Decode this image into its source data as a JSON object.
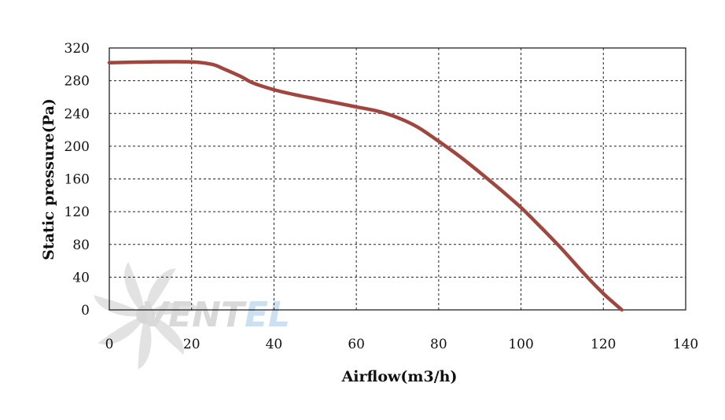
{
  "chart_data": {
    "type": "line",
    "xlabel": "Airflow(m3/h)",
    "ylabel": "Static pressure(Pa)",
    "xlim": [
      0,
      140
    ],
    "ylim": [
      0,
      320
    ],
    "xticks": [
      0,
      20,
      40,
      60,
      80,
      100,
      120,
      140
    ],
    "yticks": [
      0,
      40,
      80,
      120,
      160,
      200,
      240,
      280,
      320
    ],
    "grid": true,
    "line_color": "#a0463e",
    "series": [
      {
        "x": [
          0,
          10,
          20,
          25,
          28,
          32,
          35,
          40,
          45,
          50,
          55,
          60,
          65,
          70,
          75,
          80,
          85,
          90,
          95,
          100,
          105,
          110,
          115,
          120,
          124.5
        ],
        "y": [
          302,
          303,
          303,
          300,
          294,
          285,
          277,
          269,
          263,
          258,
          253,
          248,
          243,
          235,
          223,
          206,
          188,
          168,
          147,
          125,
          100,
          74,
          46,
          20,
          0
        ]
      }
    ]
  },
  "watermark": {
    "part1": "VENT",
    "part2": "EL"
  }
}
